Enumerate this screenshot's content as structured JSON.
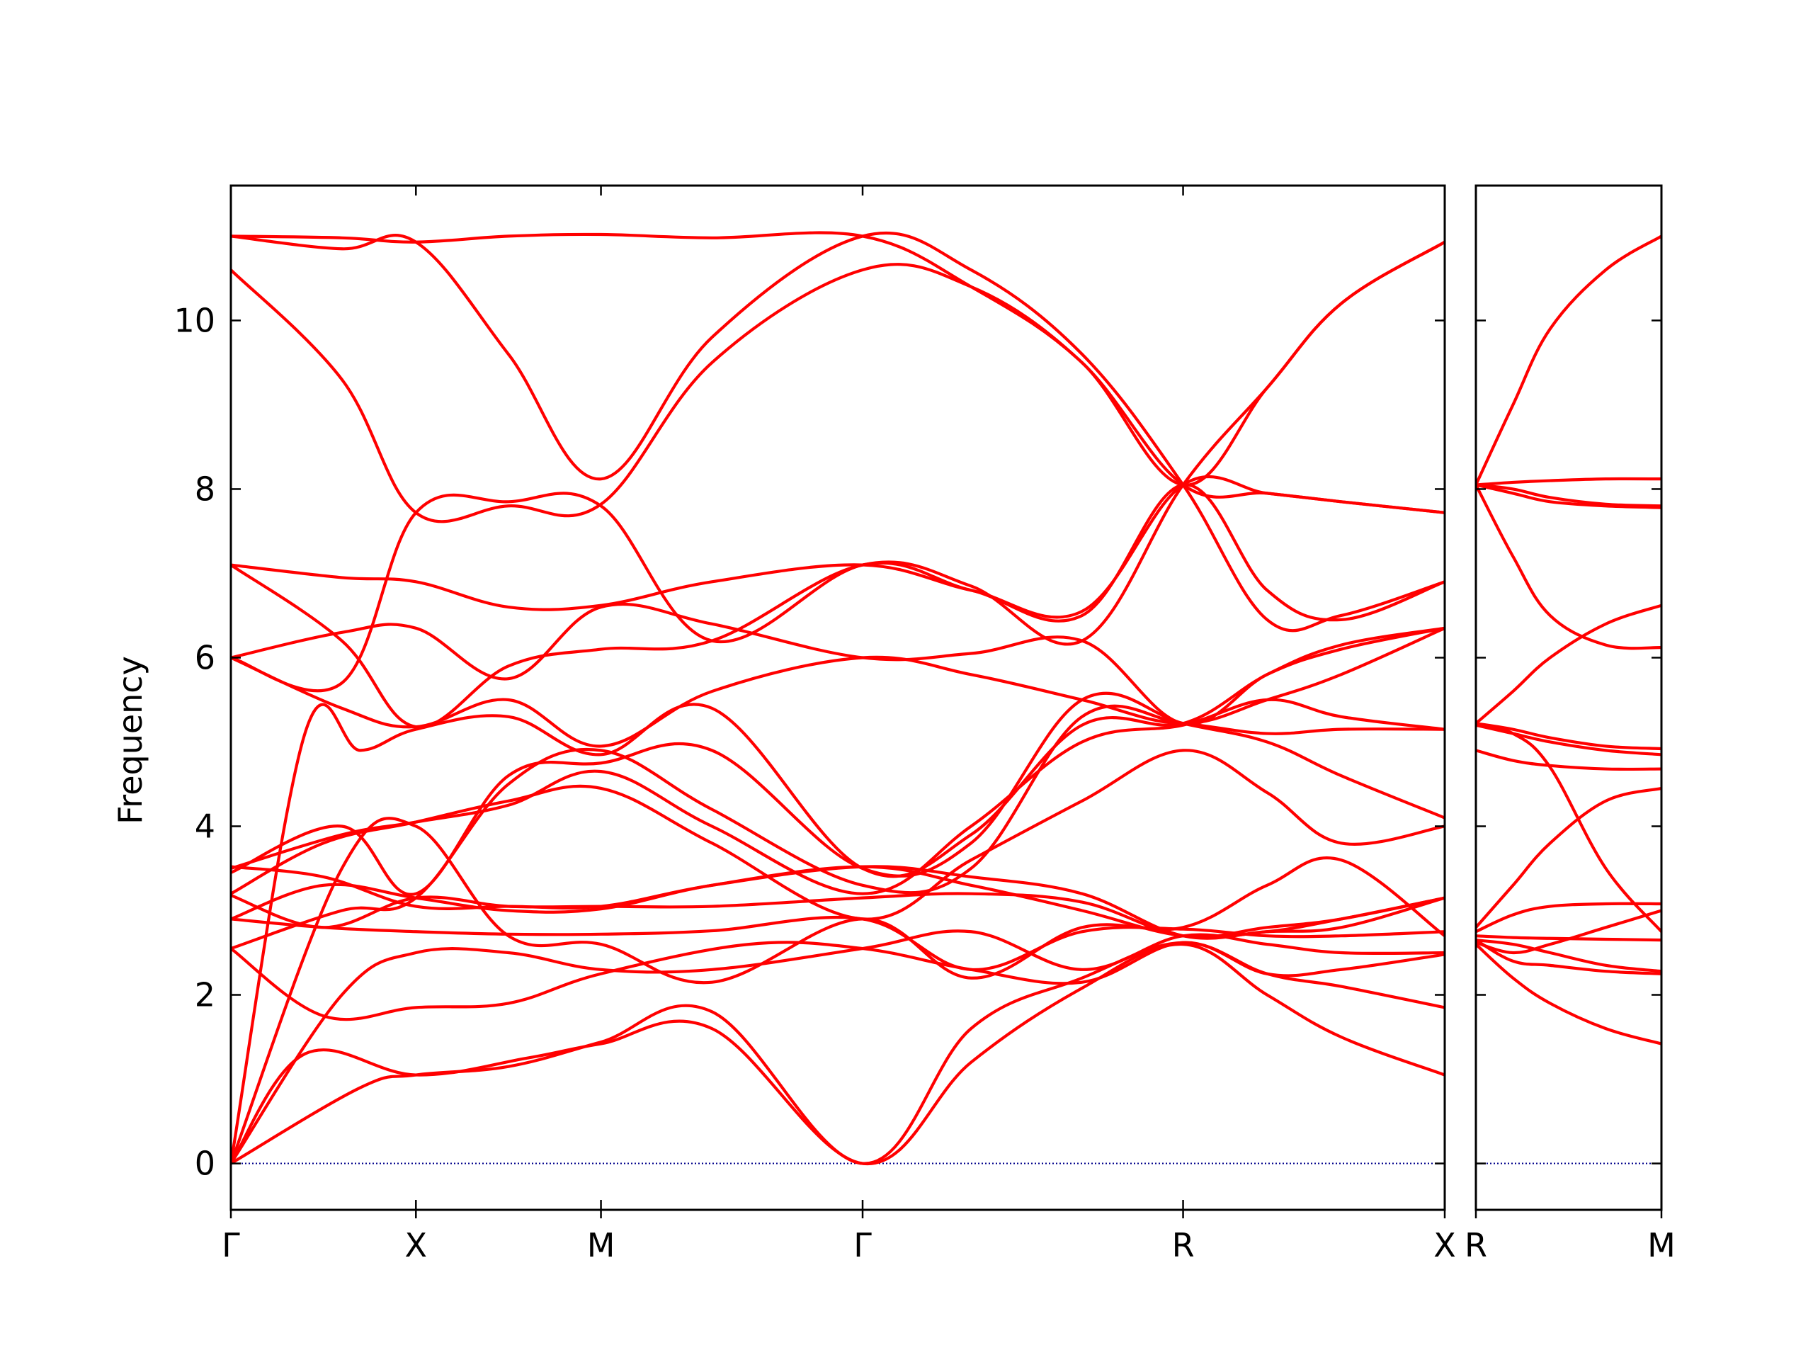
{
  "chart_data": {
    "type": "line",
    "ylabel": "Frequency",
    "ylim": [
      -0.55,
      11.6
    ],
    "yticks": [
      0,
      2,
      4,
      6,
      8,
      10
    ],
    "series_color": "#ff0000",
    "zero_line_color": "#00008b",
    "grid": false,
    "legend": "none",
    "panels": [
      {
        "path_points": [
          {
            "label": "Γ",
            "x": 0.0
          },
          {
            "label": "X",
            "x": 0.5
          },
          {
            "label": "M",
            "x": 1.0
          },
          {
            "label": "Γ",
            "x": 1.707
          },
          {
            "label": "R",
            "x": 2.573
          },
          {
            "label": "X",
            "x": 3.28
          }
        ],
        "bands": [
          {
            "x": [
              0,
              0.2,
              0.5,
              0.8,
              1.0,
              1.3,
              1.707,
              2.0,
              2.3,
              2.573,
              2.8,
              3.0,
              3.28
            ],
            "y": [
              0,
              1.3,
              1.05,
              1.25,
              1.42,
              1.6,
              0.0,
              1.2,
              2.08,
              2.6,
              2.0,
              1.5,
              1.05
            ]
          },
          {
            "x": [
              0,
              0.35,
              0.5,
              0.75,
              1.0,
              1.3,
              1.707,
              2.0,
              2.3,
              2.573,
              2.8,
              3.0,
              3.28
            ],
            "y": [
              0,
              0.9,
              1.05,
              1.15,
              1.44,
              1.8,
              0.0,
              1.6,
              2.2,
              2.62,
              2.25,
              2.1,
              1.85
            ]
          },
          {
            "x": [
              0,
              0.25,
              0.5,
              0.75,
              1.0,
              1.4,
              1.707,
              2.0,
              2.3,
              2.573,
              2.8,
              3.0,
              3.28
            ],
            "y": [
              2.55,
              1.75,
              1.85,
              1.9,
              2.25,
              2.6,
              2.55,
              2.3,
              2.15,
              2.62,
              2.25,
              2.3,
              2.48
            ]
          },
          {
            "x": [
              0,
              0.3,
              0.5,
              0.75,
              1.0,
              1.3,
              1.707,
              2.0,
              2.3,
              2.573,
              2.8,
              3.0,
              3.28
            ],
            "y": [
              0,
              2.0,
              2.5,
              2.5,
              2.3,
              2.3,
              2.55,
              2.75,
              2.3,
              2.7,
              2.6,
              2.5,
              2.5
            ]
          },
          {
            "x": [
              0,
              0.25,
              0.5,
              0.75,
              1.0,
              1.3,
              1.707,
              2.0,
              2.3,
              2.573,
              2.8,
              3.0,
              3.28
            ],
            "y": [
              2.9,
              2.8,
              2.75,
              2.72,
              2.72,
              2.76,
              2.9,
              2.3,
              2.75,
              2.78,
              2.7,
              2.7,
              2.75
            ]
          },
          {
            "x": [
              0,
              0.3,
              0.5,
              0.75,
              1.0,
              1.3,
              1.707,
              2.0,
              2.3,
              2.573,
              2.8,
              3.0,
              3.28
            ],
            "y": [
              0,
              3.5,
              4.0,
              2.7,
              2.6,
              2.15,
              2.9,
              2.2,
              2.8,
              2.8,
              3.3,
              3.6,
              2.7
            ]
          },
          {
            "x": [
              0,
              0.25,
              0.5,
              0.75,
              1.0,
              1.3,
              1.707,
              2.0,
              2.3,
              2.573,
              2.8,
              3.0,
              3.28
            ],
            "y": [
              3.18,
              2.8,
              3.15,
              3.05,
              3.05,
              3.05,
              3.15,
              3.2,
              3.1,
              2.7,
              2.8,
              2.9,
              3.15
            ]
          },
          {
            "x": [
              0,
              0.25,
              0.5,
              0.75,
              1.0,
              1.3,
              1.707,
              2.0,
              2.3,
              2.573,
              2.8,
              3.0,
              3.28
            ],
            "y": [
              2.9,
              3.3,
              3.15,
              3.0,
              3.02,
              3.3,
              3.52,
              3.3,
              3.0,
              2.7,
              2.75,
              2.9,
              3.15
            ]
          },
          {
            "x": [
              0,
              0.25,
              0.5,
              0.75,
              1.0,
              1.3,
              1.707,
              2.0,
              2.3,
              2.573,
              2.8,
              3.0,
              3.28
            ],
            "y": [
              3.52,
              3.4,
              3.05,
              3.05,
              3.05,
              3.3,
              3.52,
              3.4,
              3.2,
              2.7,
              2.75,
              2.8,
              3.15
            ]
          },
          {
            "x": [
              0,
              0.25,
              0.5,
              0.75,
              1.0,
              1.3,
              1.707,
              2.0,
              2.3,
              2.573,
              2.8,
              3.0,
              3.28
            ],
            "y": [
              3.2,
              3.8,
              4.05,
              4.3,
              4.45,
              3.8,
              2.9,
              3.6,
              4.3,
              4.9,
              4.4,
              3.8,
              4.0
            ]
          },
          {
            "x": [
              0,
              0.3,
              0.5,
              0.75,
              1.0,
              1.3,
              1.707,
              2.0,
              2.3,
              2.573,
              2.8,
              3.0,
              3.28
            ],
            "y": [
              3.5,
              3.9,
              4.05,
              4.25,
              4.65,
              4.0,
              3.2,
              4.0,
              5.0,
              5.2,
              5.5,
              5.3,
              5.15
            ]
          },
          {
            "x": [
              0,
              0.2,
              0.35,
              0.5,
              0.75,
              1.0,
              1.3,
              1.707,
              2.0,
              2.3,
              2.573,
              2.8,
              3.0,
              3.28
            ],
            "y": [
              0,
              5.1,
              4.9,
              5.15,
              5.3,
              4.85,
              5.4,
              3.5,
              3.9,
              5.2,
              5.22,
              5.8,
              6.15,
              6.35
            ]
          },
          {
            "x": [
              0,
              0.3,
              0.5,
              0.75,
              1.0,
              1.3,
              1.707,
              2.0,
              2.3,
              2.573,
              2.8,
              3.0,
              3.28
            ],
            "y": [
              3.45,
              4.0,
              3.2,
              4.6,
              4.75,
              4.9,
              3.5,
              3.8,
              5.5,
              5.22,
              5.0,
              4.6,
              4.1
            ]
          },
          {
            "x": [
              0,
              0.3,
              0.5,
              0.75,
              1.0,
              1.3,
              1.707,
              2.0,
              2.3,
              2.573,
              2.8,
              3.0,
              3.28
            ],
            "y": [
              2.55,
              3.0,
              3.15,
              4.5,
              4.9,
              4.2,
              3.3,
              3.5,
              5.3,
              5.22,
              5.1,
              5.15,
              5.15
            ]
          },
          {
            "x": [
              0,
              0.3,
              0.5,
              0.75,
              1.0,
              1.3,
              1.707,
              2.0,
              2.3,
              2.573,
              2.8,
              3.0,
              3.28
            ],
            "y": [
              6.0,
              5.4,
              5.18,
              5.5,
              4.95,
              5.6,
              6.0,
              5.8,
              5.5,
              5.22,
              5.5,
              5.8,
              6.35
            ]
          },
          {
            "x": [
              0,
              0.3,
              0.5,
              0.75,
              1.0,
              1.3,
              1.707,
              2.0,
              2.3,
              2.573,
              2.8,
              3.0,
              3.28
            ],
            "y": [
              7.1,
              6.2,
              5.18,
              5.9,
              6.1,
              6.2,
              7.1,
              6.8,
              6.5,
              8.05,
              6.8,
              6.45,
              6.9
            ]
          },
          {
            "x": [
              0,
              0.3,
              0.5,
              0.75,
              1.0,
              1.3,
              1.707,
              2.0,
              2.3,
              2.573,
              2.8,
              3.0,
              3.28
            ],
            "y": [
              6.0,
              6.3,
              6.35,
              5.75,
              6.6,
              6.4,
              6.0,
              6.05,
              6.2,
              5.22,
              5.8,
              6.1,
              6.35
            ]
          },
          {
            "x": [
              0,
              0.3,
              0.5,
              0.75,
              1.0,
              1.3,
              1.707,
              2.0,
              2.3,
              2.573,
              2.8,
              3.0,
              3.28
            ],
            "y": [
              7.1,
              6.95,
              6.9,
              6.6,
              6.62,
              6.9,
              7.1,
              6.8,
              6.55,
              8.05,
              7.95,
              7.85,
              7.72
            ]
          },
          {
            "x": [
              0,
              0.3,
              0.5,
              0.75,
              1.0,
              1.3,
              1.707,
              2.0,
              2.3,
              2.573,
              2.8,
              3.0,
              3.28
            ],
            "y": [
              6.0,
              5.7,
              7.72,
              7.85,
              7.8,
              6.2,
              7.1,
              6.85,
              6.2,
              8.05,
              9.2,
              10.2,
              10.93
            ]
          },
          {
            "x": [
              0,
              0.3,
              0.5,
              0.75,
              1.0,
              1.3,
              1.707,
              2.0,
              2.3,
              2.573,
              2.8,
              3.0,
              3.28
            ],
            "y": [
              10.6,
              9.3,
              7.72,
              7.8,
              7.82,
              9.5,
              10.6,
              10.4,
              9.5,
              8.05,
              9.2,
              10.2,
              10.93
            ]
          },
          {
            "x": [
              0,
              0.3,
              0.5,
              0.75,
              1.0,
              1.3,
              1.707,
              2.0,
              2.3,
              2.573,
              2.8,
              3.0,
              3.28
            ],
            "y": [
              11.0,
              10.85,
              10.93,
              9.6,
              8.12,
              9.8,
              11.0,
              10.6,
              9.6,
              8.05,
              6.45,
              6.5,
              6.9
            ]
          },
          {
            "x": [
              0,
              0.3,
              0.5,
              0.75,
              1.0,
              1.3,
              1.707,
              2.0,
              2.3,
              2.573,
              2.8,
              3.0,
              3.28
            ],
            "y": [
              11.0,
              10.98,
              10.93,
              11.0,
              11.02,
              10.98,
              11.0,
              10.4,
              9.5,
              8.05,
              7.95,
              7.85,
              7.72
            ]
          }
        ]
      },
      {
        "path_points": [
          {
            "label": "R",
            "x": 0.0
          },
          {
            "label": "M",
            "x": 0.5
          }
        ],
        "bands": [
          {
            "x": [
              0,
              0.1,
              0.2,
              0.35,
              0.5
            ],
            "y": [
              2.6,
              2.2,
              1.9,
              1.6,
              1.42
            ]
          },
          {
            "x": [
              0,
              0.1,
              0.2,
              0.35,
              0.5
            ],
            "y": [
              2.65,
              2.4,
              2.35,
              2.28,
              2.25
            ]
          },
          {
            "x": [
              0,
              0.1,
              0.2,
              0.35,
              0.5
            ],
            "y": [
              2.65,
              2.6,
              2.5,
              2.35,
              2.28
            ]
          },
          {
            "x": [
              0,
              0.1,
              0.2,
              0.35,
              0.5
            ],
            "y": [
              2.7,
              2.68,
              2.67,
              2.66,
              2.65
            ]
          },
          {
            "x": [
              0,
              0.1,
              0.2,
              0.35,
              0.5
            ],
            "y": [
              2.62,
              2.5,
              2.6,
              2.8,
              3.0
            ]
          },
          {
            "x": [
              0,
              0.1,
              0.2,
              0.35,
              0.5
            ],
            "y": [
              2.75,
              2.95,
              3.05,
              3.08,
              3.08
            ]
          },
          {
            "x": [
              0,
              0.1,
              0.2,
              0.35,
              0.5
            ],
            "y": [
              2.8,
              3.3,
              3.8,
              4.3,
              4.45
            ]
          },
          {
            "x": [
              0,
              0.1,
              0.2,
              0.35,
              0.5
            ],
            "y": [
              4.9,
              4.78,
              4.72,
              4.68,
              4.68
            ]
          },
          {
            "x": [
              0,
              0.1,
              0.2,
              0.35,
              0.5
            ],
            "y": [
              5.2,
              5.1,
              4.7,
              3.5,
              2.75
            ]
          },
          {
            "x": [
              0,
              0.1,
              0.2,
              0.35,
              0.5
            ],
            "y": [
              5.2,
              5.1,
              5.0,
              4.9,
              4.85
            ]
          },
          {
            "x": [
              0,
              0.1,
              0.2,
              0.35,
              0.5
            ],
            "y": [
              5.22,
              5.15,
              5.05,
              4.95,
              4.92
            ]
          },
          {
            "x": [
              0,
              0.1,
              0.2,
              0.35,
              0.5
            ],
            "y": [
              5.22,
              5.6,
              6.0,
              6.4,
              6.62
            ]
          },
          {
            "x": [
              0,
              0.1,
              0.2,
              0.35,
              0.5
            ],
            "y": [
              8.05,
              7.2,
              6.5,
              6.15,
              6.12
            ]
          },
          {
            "x": [
              0,
              0.1,
              0.2,
              0.35,
              0.5
            ],
            "y": [
              8.05,
              7.95,
              7.85,
              7.8,
              7.78
            ]
          },
          {
            "x": [
              0,
              0.1,
              0.2,
              0.35,
              0.5
            ],
            "y": [
              8.05,
              8.0,
              7.9,
              7.82,
              7.8
            ]
          },
          {
            "x": [
              0,
              0.1,
              0.2,
              0.35,
              0.5
            ],
            "y": [
              8.05,
              8.08,
              8.1,
              8.12,
              8.12
            ]
          },
          {
            "x": [
              0,
              0.1,
              0.2,
              0.35,
              0.5
            ],
            "y": [
              8.05,
              9.0,
              9.9,
              10.6,
              11.0
            ]
          }
        ]
      }
    ]
  }
}
